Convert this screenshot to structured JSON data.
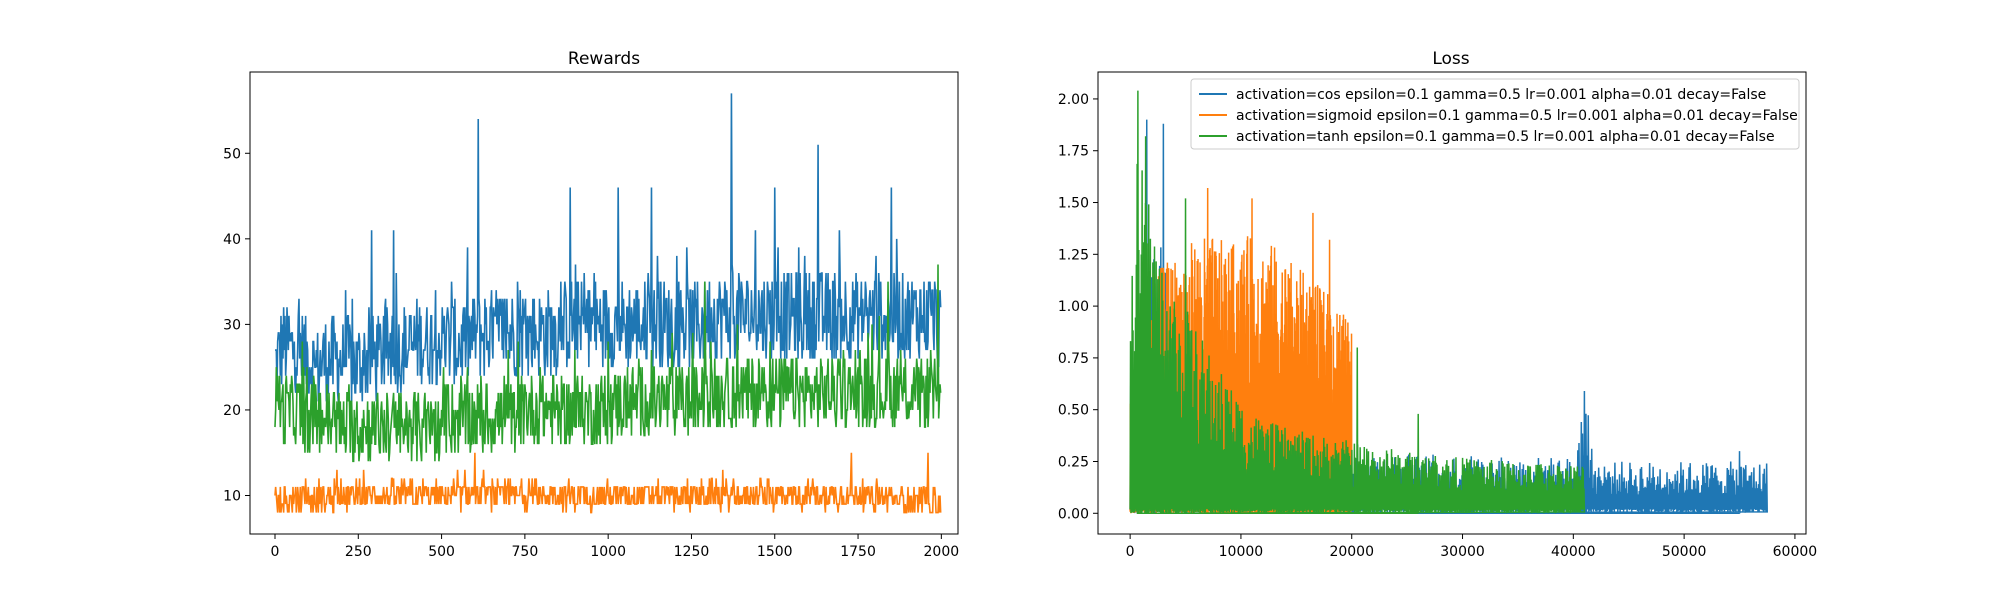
{
  "chart_data": [
    {
      "type": "line",
      "title": "Rewards",
      "xlabel": "",
      "ylabel": "",
      "xlim": [
        -75,
        2050
      ],
      "ylim": [
        5.5,
        59.5
      ],
      "xticks": [
        0,
        250,
        500,
        750,
        1000,
        1250,
        1500,
        1750,
        2000
      ],
      "yticks": [
        10,
        20,
        30,
        40,
        50
      ],
      "grid": false,
      "series": [
        {
          "color": "#1f77b4",
          "n": 2000,
          "points": [
            [
              0,
              25
            ],
            [
              25,
              28
            ],
            [
              50,
              27
            ],
            [
              75,
              27
            ],
            [
              100,
              26
            ],
            [
              125,
              25
            ],
            [
              150,
              26
            ],
            [
              175,
              26
            ],
            [
              200,
              26
            ],
            [
              225,
              26
            ],
            [
              250,
              25
            ],
            [
              275,
              26
            ],
            [
              300,
              26
            ],
            [
              325,
              27
            ],
            [
              350,
              27
            ],
            [
              375,
              27
            ],
            [
              400,
              27
            ],
            [
              425,
              28
            ],
            [
              450,
              28
            ],
            [
              475,
              28
            ],
            [
              500,
              28
            ],
            [
              525,
              28
            ],
            [
              550,
              28
            ],
            [
              575,
              28
            ],
            [
              600,
              29
            ],
            [
              625,
              29
            ],
            [
              650,
              29
            ],
            [
              675,
              29
            ],
            [
              700,
              29
            ],
            [
              725,
              29
            ],
            [
              750,
              29
            ],
            [
              775,
              29
            ],
            [
              800,
              29
            ],
            [
              825,
              29
            ],
            [
              850,
              29
            ],
            [
              875,
              30
            ],
            [
              900,
              30
            ],
            [
              925,
              30
            ],
            [
              950,
              30
            ],
            [
              975,
              30
            ],
            [
              1000,
              30
            ],
            [
              1025,
              30
            ],
            [
              1050,
              30
            ],
            [
              1075,
              30
            ],
            [
              1100,
              30
            ],
            [
              1125,
              30
            ],
            [
              1150,
              30
            ],
            [
              1175,
              30
            ],
            [
              1200,
              30
            ],
            [
              1225,
              30
            ],
            [
              1250,
              30
            ],
            [
              1275,
              30
            ],
            [
              1300,
              31
            ],
            [
              1325,
              31
            ],
            [
              1350,
              31
            ],
            [
              1375,
              31
            ],
            [
              1400,
              31
            ],
            [
              1425,
              31
            ],
            [
              1450,
              31
            ],
            [
              1475,
              31
            ],
            [
              1500,
              31
            ],
            [
              1525,
              31
            ],
            [
              1550,
              31
            ],
            [
              1575,
              31
            ],
            [
              1600,
              31
            ],
            [
              1625,
              31
            ],
            [
              1650,
              31
            ],
            [
              1675,
              31
            ],
            [
              1700,
              31
            ],
            [
              1725,
              31
            ],
            [
              1750,
              31
            ],
            [
              1775,
              31
            ],
            [
              1800,
              31
            ],
            [
              1825,
              31
            ],
            [
              1850,
              31
            ],
            [
              1875,
              31
            ],
            [
              1900,
              31
            ],
            [
              1925,
              31
            ],
            [
              1950,
              31
            ],
            [
              1975,
              31
            ],
            [
              2000,
              30
            ]
          ],
          "min": 19,
          "max": 57,
          "peaks": [
            [
              290,
              41
            ],
            [
              355,
              41
            ],
            [
              530,
              35
            ],
            [
              610,
              54
            ],
            [
              885,
              46
            ],
            [
              1030,
              46
            ],
            [
              1130,
              46
            ],
            [
              1370,
              57
            ],
            [
              1500,
              46
            ],
            [
              1630,
              51
            ],
            [
              1850,
              46
            ]
          ]
        },
        {
          "color": "#ff7f0e",
          "n": 2000,
          "points": [
            [
              0,
              9
            ],
            [
              250,
              10
            ],
            [
              500,
              10
            ],
            [
              750,
              10
            ],
            [
              1000,
              10
            ],
            [
              1250,
              10
            ],
            [
              1500,
              10
            ],
            [
              1750,
              10
            ],
            [
              2000,
              9
            ]
          ],
          "min": 8,
          "max": 15,
          "peaks": [
            [
              600,
              15
            ],
            [
              1730,
              15
            ],
            [
              1960,
              15
            ]
          ]
        },
        {
          "color": "#2ca02c",
          "n": 2000,
          "points": [
            [
              0,
              22
            ],
            [
              25,
              20
            ],
            [
              50,
              20
            ],
            [
              75,
              20
            ],
            [
              100,
              19
            ],
            [
              125,
              19
            ],
            [
              150,
              19
            ],
            [
              175,
              19
            ],
            [
              200,
              18
            ],
            [
              225,
              18
            ],
            [
              250,
              18
            ],
            [
              275,
              18
            ],
            [
              300,
              18
            ],
            [
              325,
              18
            ],
            [
              350,
              18
            ],
            [
              375,
              18
            ],
            [
              400,
              18
            ],
            [
              425,
              18
            ],
            [
              450,
              18
            ],
            [
              475,
              18
            ],
            [
              500,
              18
            ],
            [
              525,
              19
            ],
            [
              550,
              19
            ],
            [
              575,
              19
            ],
            [
              600,
              19
            ],
            [
              625,
              19
            ],
            [
              650,
              19
            ],
            [
              675,
              19
            ],
            [
              700,
              19
            ],
            [
              725,
              19
            ],
            [
              750,
              20
            ],
            [
              775,
              20
            ],
            [
              800,
              20
            ],
            [
              825,
              20
            ],
            [
              850,
              20
            ],
            [
              875,
              20
            ],
            [
              900,
              20
            ],
            [
              925,
              20
            ],
            [
              950,
              20
            ],
            [
              975,
              20
            ],
            [
              1000,
              20
            ],
            [
              1025,
              21
            ],
            [
              1050,
              21
            ],
            [
              1075,
              21
            ],
            [
              1100,
              21
            ],
            [
              1125,
              21
            ],
            [
              1150,
              21
            ],
            [
              1175,
              21
            ],
            [
              1200,
              21
            ],
            [
              1225,
              21
            ],
            [
              1250,
              21
            ],
            [
              1275,
              21
            ],
            [
              1300,
              22
            ],
            [
              1325,
              22
            ],
            [
              1350,
              22
            ],
            [
              1375,
              22
            ],
            [
              1400,
              22
            ],
            [
              1425,
              22
            ],
            [
              1450,
              22
            ],
            [
              1475,
              22
            ],
            [
              1500,
              22
            ],
            [
              1525,
              22
            ],
            [
              1550,
              22
            ],
            [
              1575,
              22
            ],
            [
              1600,
              22
            ],
            [
              1625,
              22
            ],
            [
              1650,
              22
            ],
            [
              1675,
              22
            ],
            [
              1700,
              22
            ],
            [
              1725,
              22
            ],
            [
              1750,
              22
            ],
            [
              1775,
              22
            ],
            [
              1800,
              22
            ],
            [
              1825,
              22
            ],
            [
              1850,
              22
            ],
            [
              1875,
              22
            ],
            [
              1900,
              22
            ],
            [
              1925,
              22
            ],
            [
              1950,
              22
            ],
            [
              1975,
              22
            ],
            [
              2000,
              22
            ]
          ],
          "min": 13,
          "max": 37,
          "peaks": [
            [
              1290,
              35
            ],
            [
              1840,
              35
            ],
            [
              1990,
              37
            ]
          ]
        }
      ]
    },
    {
      "type": "line",
      "title": "Loss",
      "xlabel": "",
      "ylabel": "",
      "xlim": [
        -2900,
        61000
      ],
      "ylim": [
        -0.1,
        2.13
      ],
      "xticks": [
        0,
        10000,
        20000,
        30000,
        40000,
        50000,
        60000
      ],
      "yticks": [
        0.0,
        0.25,
        0.5,
        0.75,
        1.0,
        1.25,
        1.5,
        1.75,
        2.0
      ],
      "ytick_labels": [
        "0.00",
        "0.25",
        "0.50",
        "0.75",
        "1.00",
        "1.25",
        "1.50",
        "1.75",
        "2.00"
      ],
      "grid": false,
      "legend": {
        "location": "upper right",
        "entries": [
          {
            "color": "#1f77b4",
            "label": "activation=cos epsilon=0.1 gamma=0.5 lr=0.001 alpha=0.01 decay=False"
          },
          {
            "color": "#ff7f0e",
            "label": "activation=sigmoid epsilon=0.1 gamma=0.5 lr=0.001 alpha=0.01 decay=False"
          },
          {
            "color": "#2ca02c",
            "label": "activation=tanh epsilon=0.1 gamma=0.5 lr=0.001 alpha=0.01 decay=False"
          }
        ]
      },
      "series": [
        {
          "color": "#1f77b4",
          "x_end": 57500,
          "envelope": [
            [
              0,
              0.9
            ],
            [
              1000,
              1.1
            ],
            [
              2000,
              1.2
            ],
            [
              3000,
              1.5
            ],
            [
              4000,
              1.1
            ],
            [
              6000,
              0.7
            ],
            [
              10000,
              0.45
            ],
            [
              15000,
              0.35
            ],
            [
              20000,
              0.3
            ],
            [
              30000,
              0.28
            ],
            [
              40000,
              0.27
            ],
            [
              41000,
              0.6
            ],
            [
              42000,
              0.25
            ],
            [
              50000,
              0.25
            ],
            [
              57500,
              0.25
            ]
          ],
          "peaks": [
            [
              1500,
              1.9
            ],
            [
              3000,
              1.88
            ],
            [
              41000,
              0.59
            ],
            [
              55000,
              0.3
            ]
          ]
        },
        {
          "color": "#ff7f0e",
          "x_end": 20000,
          "envelope": [
            [
              0,
              0.6
            ],
            [
              1000,
              1.1
            ],
            [
              3000,
              1.2
            ],
            [
              5000,
              1.3
            ],
            [
              7000,
              1.35
            ],
            [
              9000,
              1.3
            ],
            [
              11000,
              1.35
            ],
            [
              13000,
              1.3
            ],
            [
              15000,
              1.2
            ],
            [
              17000,
              1.1
            ],
            [
              18500,
              1.05
            ],
            [
              19500,
              0.95
            ],
            [
              20000,
              0.9
            ]
          ],
          "peaks": [
            [
              7000,
              1.57
            ],
            [
              11000,
              1.52
            ],
            [
              16500,
              1.45
            ],
            [
              18000,
              1.32
            ]
          ]
        },
        {
          "color": "#2ca02c",
          "x_end": 41000,
          "envelope": [
            [
              0,
              1.2
            ],
            [
              500,
              1.8
            ],
            [
              1000,
              1.7
            ],
            [
              2000,
              1.5
            ],
            [
              3000,
              1.2
            ],
            [
              4000,
              1.1
            ],
            [
              5000,
              1.0
            ],
            [
              6000,
              0.9
            ],
            [
              8000,
              0.7
            ],
            [
              10000,
              0.55
            ],
            [
              12000,
              0.45
            ],
            [
              15000,
              0.4
            ],
            [
              20000,
              0.35
            ],
            [
              25000,
              0.3
            ],
            [
              30000,
              0.27
            ],
            [
              35000,
              0.25
            ],
            [
              41000,
              0.24
            ]
          ],
          "peaks": [
            [
              700,
              2.04
            ],
            [
              1400,
              1.82
            ],
            [
              5000,
              1.52
            ],
            [
              20500,
              0.8
            ],
            [
              26000,
              0.48
            ]
          ]
        }
      ]
    }
  ]
}
